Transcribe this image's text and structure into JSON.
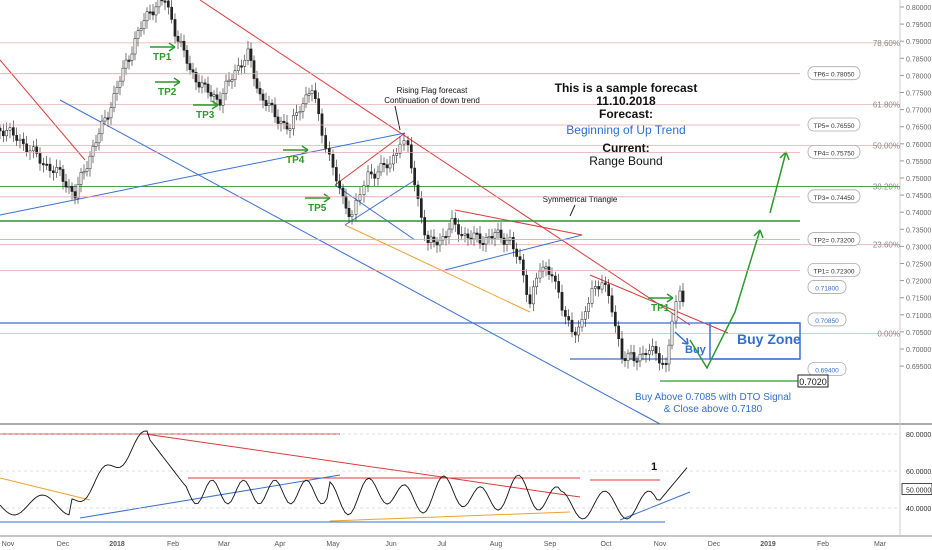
{
  "chart_data": [
    {
      "type": "candlestick",
      "title": "This is a sample forecast",
      "date_text": "11.10.2018",
      "forecast_label": "Forecast:",
      "forecast_value": "Beginning of Up Trend",
      "current_label": "Current:",
      "current_value": "Range Bound",
      "x_tick_labels": [
        "Nov",
        "Dec",
        "2018",
        "Feb",
        "Mar",
        "Apr",
        "May",
        "Jun",
        "Jul",
        "Aug",
        "Sep",
        "Oct",
        "Nov",
        "Dec",
        "2019",
        "Feb",
        "Mar"
      ],
      "y_tick_labels": [
        "0.80000",
        "0.79500",
        "0.79000",
        "0.78500",
        "0.78000",
        "0.77500",
        "0.77000",
        "0.76500",
        "0.76000",
        "0.75500",
        "0.75000",
        "0.74500",
        "0.74000",
        "0.73500",
        "0.73000",
        "0.72500",
        "0.72000",
        "0.71500",
        "0.71000",
        "0.70500",
        "0.70000",
        "0.69500"
      ],
      "ylim": [
        0.692,
        0.803
      ],
      "fib_levels": [
        {
          "label": "78.60%",
          "value": 0.7895
        },
        {
          "label": "61.80%",
          "value": 0.7715
        },
        {
          "label": "50.00%",
          "value": 0.7595
        },
        {
          "label": "38.20%",
          "value": 0.7475
        },
        {
          "label": "23.60%",
          "value": 0.7305
        },
        {
          "label": "0.00%",
          "value": 0.7045
        }
      ],
      "targets": [
        {
          "label": "TP6= 0.78050",
          "value": 0.7805
        },
        {
          "label": "TP5= 0.76550",
          "value": 0.7655
        },
        {
          "label": "TP4= 0.75750",
          "value": 0.7575
        },
        {
          "label": "TP3= 0.74450",
          "value": 0.7445
        },
        {
          "label": "TP2= 0.73200",
          "value": 0.732
        },
        {
          "label": "TP1= 0.72300",
          "value": 0.723
        }
      ],
      "price_boxes": [
        {
          "label": "0.71800",
          "value": 0.718
        },
        {
          "label": "0.70850",
          "value": 0.7085
        },
        {
          "label": "0.69400",
          "value": 0.694
        }
      ],
      "stop_label": "0.7020",
      "stop_value": 0.702,
      "tp_markers": [
        "TP1",
        "TP2",
        "TP3",
        "TP4",
        "TP5",
        "TP1"
      ],
      "annotations": {
        "rising_flag_1": "Rising Flag forecast",
        "rising_flag_2": "Continuation of down trend",
        "sym_triangle": "Symmetrical Triangle",
        "buy_zone": "Buy Zone",
        "buy": "Buy",
        "buy_rule_1": "Buy Above 0.7085 with DTO Signal",
        "buy_rule_2": "& Close above 0.7180"
      },
      "colors": {
        "up_trend": "#2a9a2a",
        "resistance": "#d93b3b",
        "support": "#3a6fd0",
        "fib": "#aaaaaa",
        "orange": "#f0a030",
        "text_blue": "#2f6fcf"
      }
    },
    {
      "type": "line",
      "indicator": "oscillator",
      "y_tick_labels": [
        "80.0000",
        "60.0000",
        "50.0000",
        "40.0000"
      ],
      "ylim": [
        30,
        85
      ],
      "levels": [
        80,
        60,
        50,
        40
      ],
      "current_value": 50,
      "annotation": "1"
    }
  ]
}
